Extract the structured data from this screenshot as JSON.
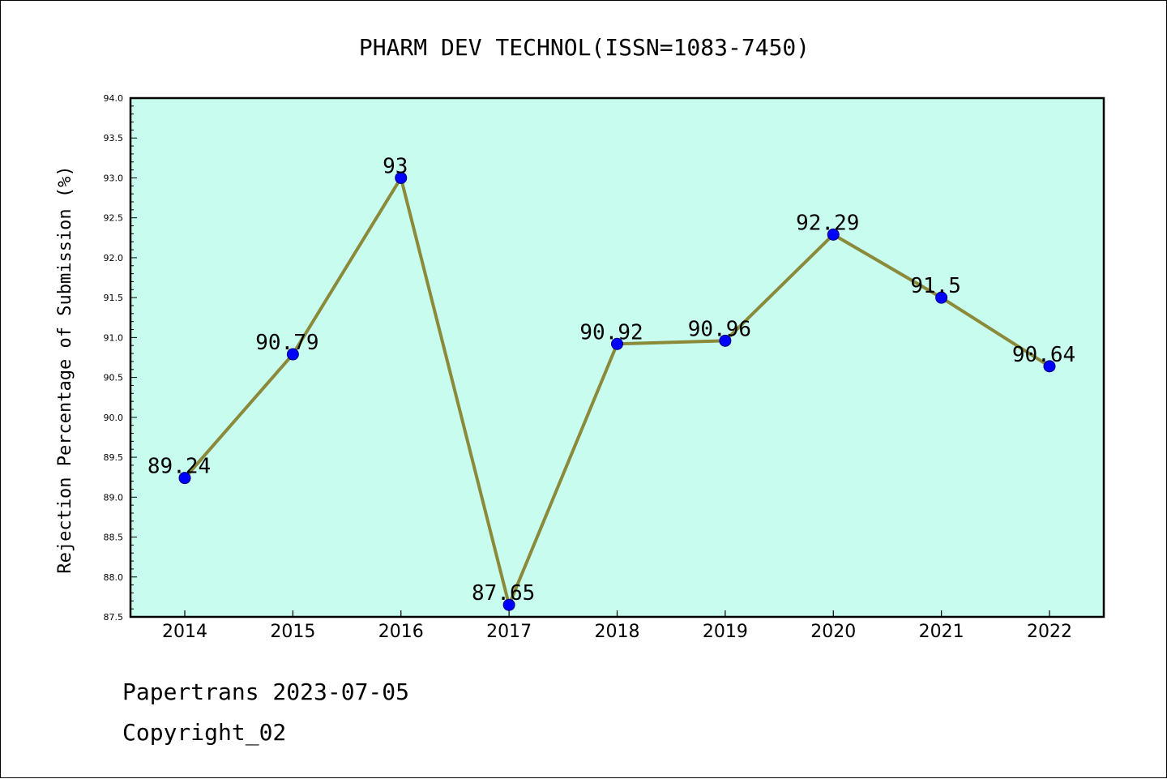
{
  "chart_data": {
    "type": "line",
    "title": "PHARM DEV TECHNOL(ISSN=1083-7450)",
    "xlabel": "",
    "ylabel": "Rejection Percentage of Submission (%)",
    "categories": [
      "2014",
      "2015",
      "2016",
      "2017",
      "2018",
      "2019",
      "2020",
      "2021",
      "2022"
    ],
    "series": [
      {
        "values": [
          89.24,
          90.79,
          93,
          87.65,
          90.92,
          90.96,
          92.29,
          91.5,
          90.64
        ],
        "labels": [
          "89.24",
          "90.79",
          "93",
          "87.65",
          "90.92",
          "90.96",
          "92.29",
          "91.5",
          "90.64"
        ]
      }
    ],
    "ylim": [
      87.5,
      94.0
    ],
    "yticks": [
      "87.5",
      "88.0",
      "88.5",
      "89.0",
      "89.5",
      "90.0",
      "90.5",
      "91.0",
      "91.5",
      "92.0",
      "92.5",
      "93.0",
      "93.5",
      "94.0"
    ],
    "grid": false,
    "colors": {
      "plot_background": "#c8fcee",
      "line": "#8b8a3a",
      "marker": "#0000ff",
      "axis": "#000000"
    }
  },
  "footer": {
    "line1": "Papertrans 2023-07-05",
    "line2": "Copyright_02"
  }
}
